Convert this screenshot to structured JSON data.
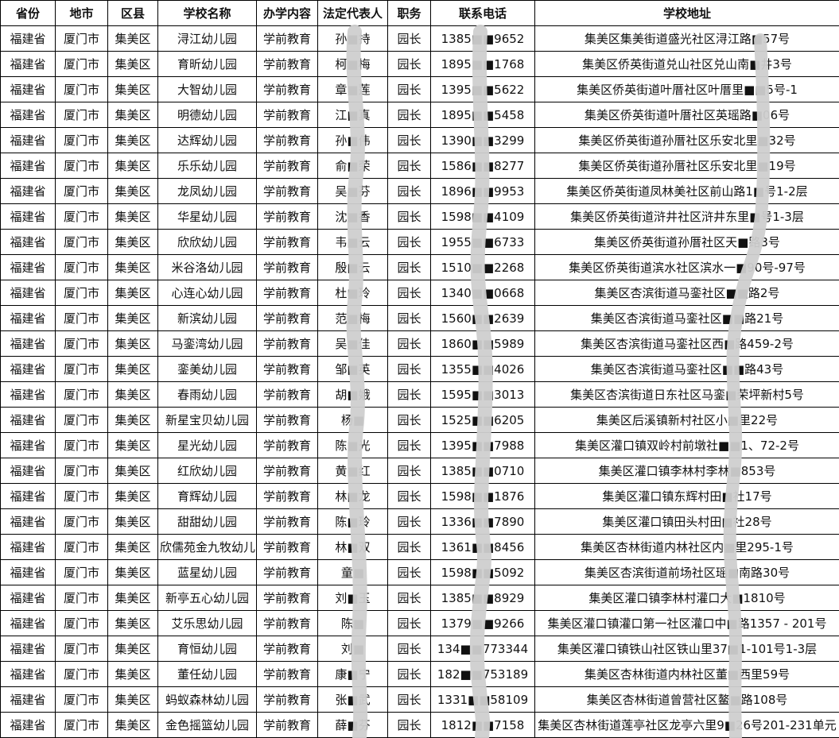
{
  "headers": [
    "省份",
    "地市",
    "区县",
    "学校名称",
    "办学内容",
    "法定代表人",
    "职务",
    "联系电话",
    "学校地址"
  ],
  "rows": [
    [
      "福建省",
      "厦门市",
      "集美区",
      "浔江幼儿园",
      "学前教育",
      "孙■持",
      "园长",
      "1385■■9652",
      "集美区集美街道盛光社区浔江路■57号"
    ],
    [
      "福建省",
      "厦门市",
      "集美区",
      "育昕幼儿园",
      "学前教育",
      "柯■梅",
      "园长",
      "1895■■1768",
      "集美区侨英街道兑山社区兑山南■井3号"
    ],
    [
      "福建省",
      "厦门市",
      "集美区",
      "大智幼儿园",
      "学前教育",
      "章■莲",
      "园长",
      "1395■■5622",
      "集美区侨英街道叶厝社区叶厝里■■5号-1"
    ],
    [
      "福建省",
      "厦门市",
      "集美区",
      "明德幼儿园",
      "学前教育",
      "江■真",
      "园长",
      "1895■■5458",
      "集美区侨英街道叶厝社区英瑶路■06号"
    ],
    [
      "福建省",
      "厦门市",
      "集美区",
      "达辉幼儿园",
      "学前教育",
      "孙■伟",
      "园长",
      "1390■■3299",
      "集美区侨英街道孙厝社区乐安北里■32号"
    ],
    [
      "福建省",
      "厦门市",
      "集美区",
      "乐乐幼儿园",
      "学前教育",
      "俞■荣",
      "园长",
      "1586■■8277",
      "集美区侨英街道孙厝社区乐安北里■19号"
    ],
    [
      "福建省",
      "厦门市",
      "集美区",
      "龙凤幼儿园",
      "学前教育",
      "吴■芬",
      "园长",
      "1896■■9953",
      "集美区侨英街道凤林美社区前山路1■号1-2层"
    ],
    [
      "福建省",
      "厦门市",
      "集美区",
      "华星幼儿园",
      "学前教育",
      "沈■香",
      "园长",
      "1598■■4109",
      "集美区侨英街道浒井社区浒井东里■号1-3层"
    ],
    [
      "福建省",
      "厦门市",
      "集美区",
      "欣欣幼儿园",
      "学前教育",
      "韦■云",
      "园长",
      "1955■■6733",
      "集美区侨英街道孙厝社区天■路3号"
    ],
    [
      "福建省",
      "厦门市",
      "集美区",
      "米谷洛幼儿园",
      "学前教育",
      "殷■云",
      "园长",
      "1510■■2268",
      "集美区侨英街道滨水社区滨水一■90号-97号"
    ],
    [
      "福建省",
      "厦门市",
      "集美区",
      "心连心幼儿园",
      "学前教育",
      "杜■玲",
      "园长",
      "1340■■0668",
      "集美区杏滨街道马銮社区■■路2号"
    ],
    [
      "福建省",
      "厦门市",
      "集美区",
      "新滨幼儿园",
      "学前教育",
      "范■梅",
      "园长",
      "1560■■2639",
      "集美区杏滨街道马銮社区■■路21号"
    ],
    [
      "福建省",
      "厦门市",
      "集美区",
      "马銮湾幼儿园",
      "学前教育",
      "吴■佳",
      "园长",
      "1860■■5989",
      "集美区杏滨街道马銮社区西■路459-2号"
    ],
    [
      "福建省",
      "厦门市",
      "集美区",
      "銮美幼儿园",
      "学前教育",
      "邹■英",
      "园长",
      "1355■■4026",
      "集美区杏滨街道马銮社区■■路43号"
    ],
    [
      "福建省",
      "厦门市",
      "集美区",
      "春雨幼儿园",
      "学前教育",
      "胡■娥",
      "园长",
      "1595■■3013",
      "集美区杏滨街道日东社区马銮■荣坪新村5号"
    ],
    [
      "福建省",
      "厦门市",
      "集美区",
      "新星宝贝幼儿园",
      "学前教育",
      "杨■",
      "园长",
      "1525■■6205",
      "集美区后溪镇新村社区小■里22号"
    ],
    [
      "福建省",
      "厦门市",
      "集美区",
      "星光幼儿园",
      "学前教育",
      "陈■光",
      "园长",
      "1395■■7988",
      "集美区灌口镇双岭村前墩社■■1、72-2号"
    ],
    [
      "福建省",
      "厦门市",
      "集美区",
      "红欣幼儿园",
      "学前教育",
      "黄■红",
      "园长",
      "1385■■0710",
      "集美区灌口镇李林村李林■853号"
    ],
    [
      "福建省",
      "厦门市",
      "集美区",
      "育辉幼儿园",
      "学前教育",
      "林■龙",
      "园长",
      "1598■■1876",
      "集美区灌口镇东辉村田■社17号"
    ],
    [
      "福建省",
      "厦门市",
      "集美区",
      "甜甜幼儿园",
      "学前教育",
      "陈■玲",
      "园长",
      "1336■■7890",
      "集美区灌口镇田头村田■社28号"
    ],
    [
      "福建省",
      "厦门市",
      "集美区",
      "欣儒苑金九牧幼儿园",
      "学前教育",
      "林■双",
      "园长",
      "1361■■8456",
      "集美区杏林街道内林社区内■里295-1号"
    ],
    [
      "福建省",
      "厦门市",
      "集美区",
      "蓝星幼儿园",
      "学前教育",
      "童■",
      "园长",
      "1598■■5092",
      "集美区杏滨街道前场社区瑶■南路30号"
    ],
    [
      "福建省",
      "厦门市",
      "集美区",
      "新亭五心幼儿园",
      "学前教育",
      "刘■玉",
      "园长",
      "1385■■8929",
      "集美区灌口镇李林村灌口大■1810号"
    ],
    [
      "福建省",
      "厦门市",
      "集美区",
      "艾乐思幼儿园",
      "学前教育",
      "陈■",
      "园长",
      "1379■■9266",
      "集美区灌口镇灌口第一社区灌口中■路1357 - 201号"
    ],
    [
      "福建省",
      "厦门市",
      "集美区",
      "育恒幼儿园",
      "学前教育",
      "刘■",
      "园长",
      "134■■773344",
      "集美区灌口镇铁山社区铁山里37■1-101号1-3层"
    ],
    [
      "福建省",
      "厦门市",
      "集美区",
      "董任幼儿园",
      "学前教育",
      "康■宁",
      "园长",
      "182■■753189",
      "集美区杏林街道内林社区董■西里59号"
    ],
    [
      "福建省",
      "厦门市",
      "集美区",
      "蚂蚁森林幼儿园",
      "学前教育",
      "张■武",
      "园长",
      "1331■■58109",
      "集美区杏林街道曾营社区鳌■路108号"
    ],
    [
      "福建省",
      "厦门市",
      "集美区",
      "金色摇篮幼儿园",
      "学前教育",
      "薛■芬",
      "园长",
      "1812■■7158",
      "集美区杏林街道莲亭社区龙亭六里9■26号201-231单元"
    ]
  ],
  "colors": {
    "border": "#000000",
    "mask": "#c8c8c8"
  }
}
